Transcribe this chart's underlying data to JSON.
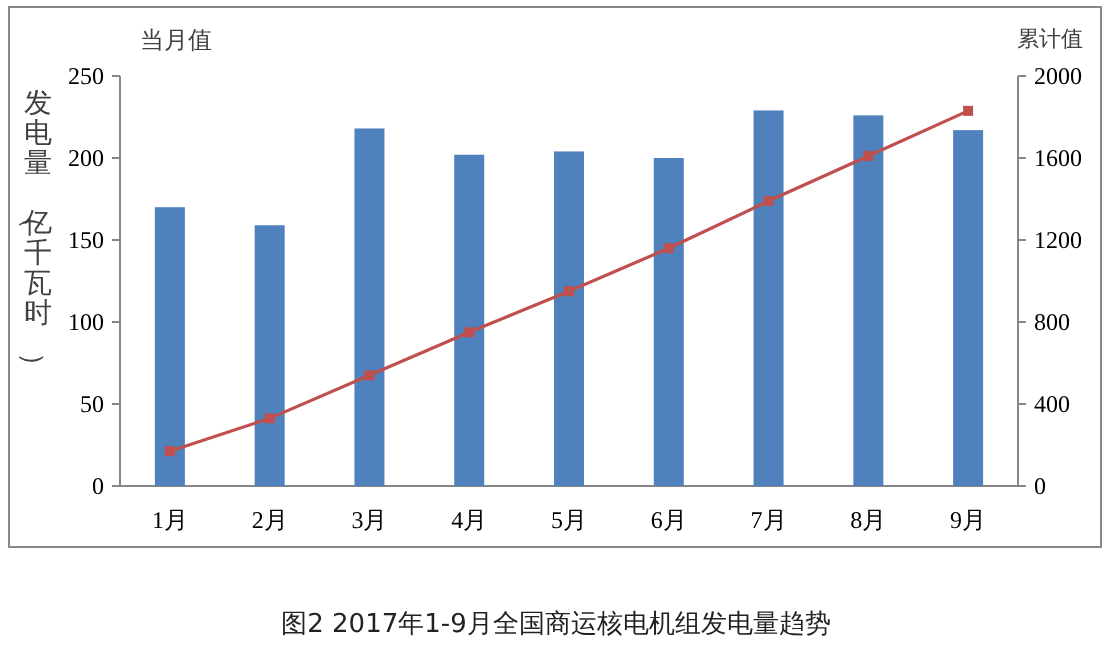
{
  "chart_data": {
    "type": "bar",
    "title": "图2 2017年1-9月全国商运核电机组发电量趋势",
    "ylabel": "发电量（亿千瓦时）",
    "y2label": "累计值",
    "annotations": [
      "当月值"
    ],
    "categories": [
      "1月",
      "2月",
      "3月",
      "4月",
      "5月",
      "6月",
      "7月",
      "8月",
      "9月"
    ],
    "series": [
      {
        "color": "#4f81bd",
        "values": [
          170,
          159,
          218,
          202,
          204,
          200,
          229,
          226,
          217
        ]
      },
      {
        "type": "line",
        "axis": "y2",
        "color": "#c0504d",
        "marker": "square",
        "values": [
          170,
          330,
          540,
          750,
          950,
          1160,
          1390,
          1610,
          1830
        ]
      }
    ],
    "ylim": [
      0,
      250
    ],
    "yticks": [
      0,
      50,
      100,
      150,
      200,
      250
    ],
    "y2lim": [
      0,
      2000
    ],
    "y2ticks": [
      0,
      400,
      800,
      1200,
      1600,
      2000
    ],
    "grid": false
  }
}
